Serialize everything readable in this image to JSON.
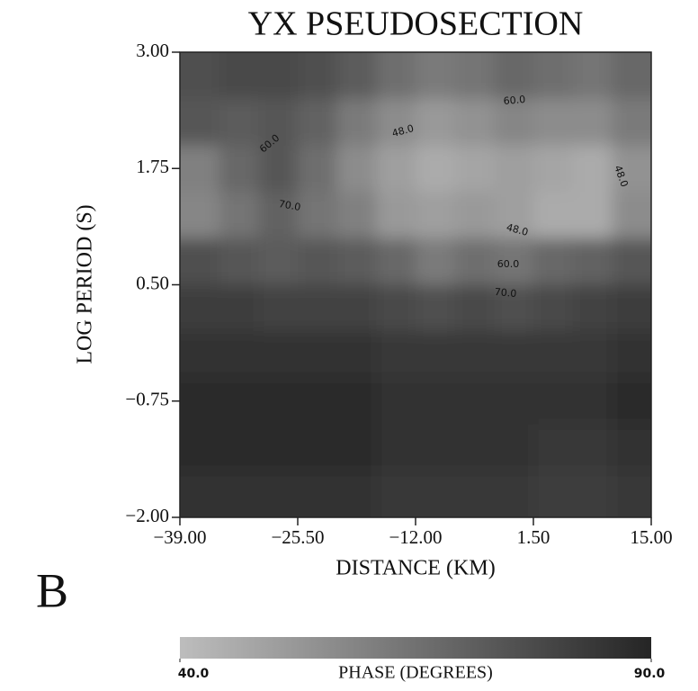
{
  "chart_data": {
    "type": "heatmap",
    "title": "YX PSEUDOSECTION",
    "xlabel": "DISTANCE (KM)",
    "ylabel": "LOG PERIOD (S)",
    "panel_label": "B",
    "xlim": [
      -39,
      15
    ],
    "ylim": [
      -2,
      3
    ],
    "xticks": [
      {
        "value": -39,
        "label": "−39.00"
      },
      {
        "value": -25.5,
        "label": "−25.50"
      },
      {
        "value": -12,
        "label": "−12.00"
      },
      {
        "value": 1.5,
        "label": "1.50"
      },
      {
        "value": 15,
        "label": "15.00"
      }
    ],
    "yticks": [
      {
        "value": 3,
        "label": "3.00"
      },
      {
        "value": 1.75,
        "label": "1.75"
      },
      {
        "value": 0.5,
        "label": "0.50"
      },
      {
        "value": -0.75,
        "label": "−0.75"
      },
      {
        "value": -2,
        "label": "−2.00"
      }
    ],
    "x": [
      -36.75,
      -32.25,
      -27.75,
      -23.25,
      -18.75,
      -14.25,
      -9.75,
      -5.25,
      -0.75,
      3.75,
      8.25,
      12.75
    ],
    "y": [
      2.75,
      2.25,
      1.75,
      1.25,
      0.75,
      0.25,
      -0.25,
      -0.75,
      -1.25,
      -1.75
    ],
    "z": [
      [
        76,
        78,
        78,
        76,
        72,
        66,
        62,
        64,
        68,
        66,
        64,
        68
      ],
      [
        74,
        72,
        74,
        70,
        62,
        56,
        52,
        54,
        58,
        56,
        56,
        62
      ],
      [
        60,
        68,
        74,
        66,
        56,
        50,
        46,
        48,
        50,
        48,
        46,
        54
      ],
      [
        58,
        64,
        70,
        64,
        60,
        52,
        50,
        52,
        50,
        46,
        46,
        56
      ],
      [
        76,
        74,
        72,
        74,
        72,
        68,
        62,
        66,
        64,
        68,
        70,
        74
      ],
      [
        82,
        82,
        80,
        80,
        80,
        78,
        76,
        78,
        76,
        78,
        80,
        82
      ],
      [
        86,
        86,
        86,
        86,
        86,
        84,
        84,
        84,
        84,
        84,
        84,
        86
      ],
      [
        88,
        88,
        88,
        88,
        88,
        86,
        86,
        86,
        86,
        86,
        86,
        88
      ],
      [
        88,
        88,
        88,
        88,
        88,
        86,
        86,
        86,
        86,
        84,
        84,
        86
      ],
      [
        86,
        86,
        86,
        86,
        86,
        84,
        84,
        84,
        84,
        82,
        82,
        84
      ]
    ],
    "annotations": [
      "60.0",
      "48.0",
      "60.0",
      "48.0",
      "70.0",
      "48.0",
      "60.0",
      "70.0"
    ],
    "colorbar": {
      "label": "PHASE (DEGREES)",
      "clim": [
        40,
        90
      ],
      "colors": [
        "#bdbdbd",
        "#252525"
      ],
      "ticks": [
        {
          "value": 40,
          "label": "40.0"
        },
        {
          "value": 90,
          "label": "90.0"
        }
      ]
    }
  }
}
